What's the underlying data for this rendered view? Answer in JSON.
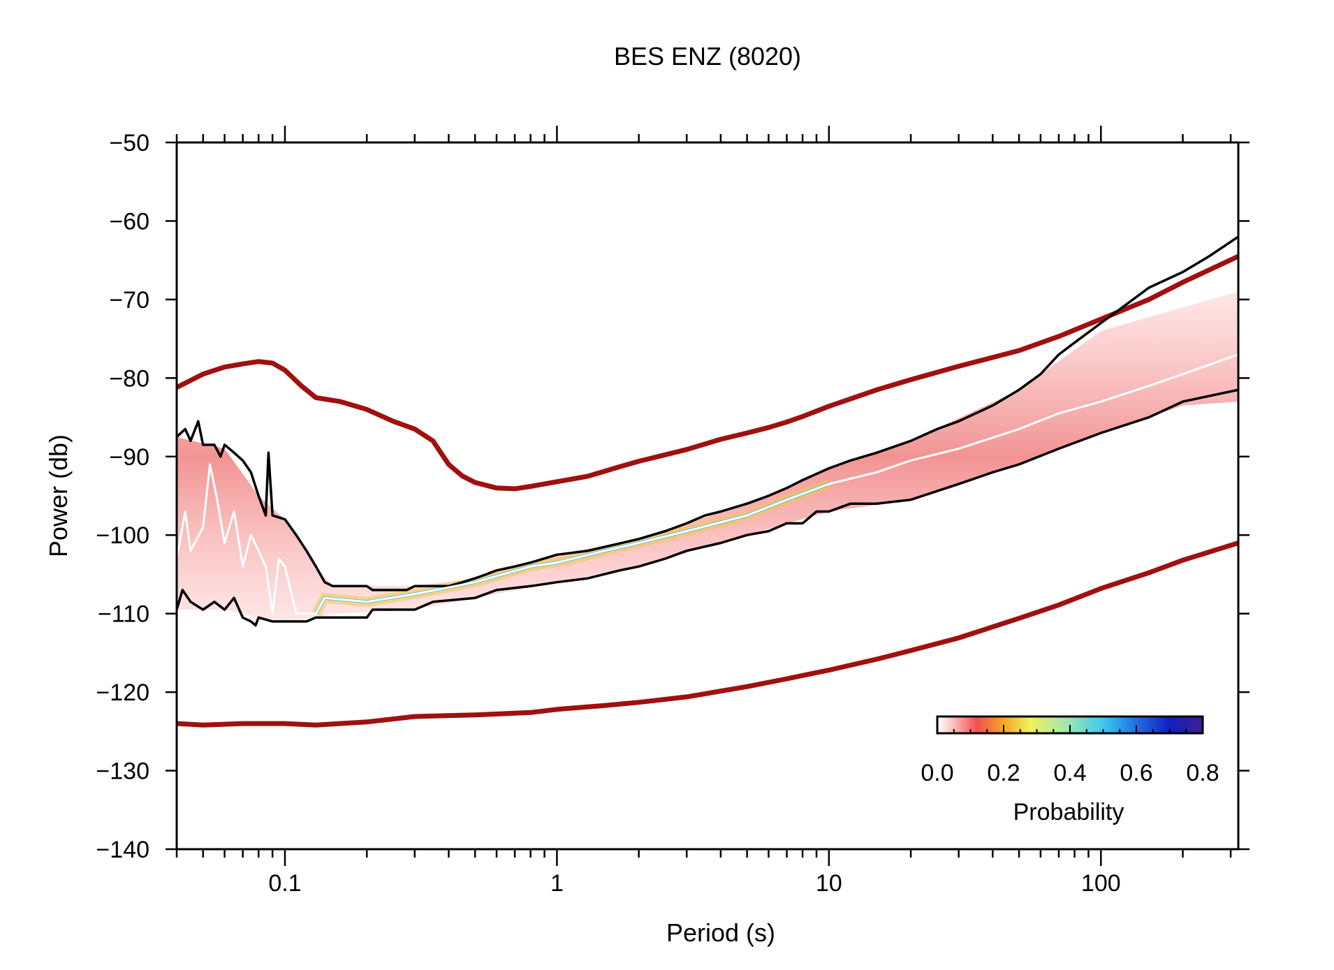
{
  "chart_data": {
    "type": "line",
    "title": "BES ENZ (8020)",
    "xlabel": "Period (s)",
    "ylabel": "Power (db)",
    "x_scale": "log",
    "xlim": [
      0.04,
      320
    ],
    "ylim": [
      -140,
      -50
    ],
    "x_ticks": [
      {
        "value": 0.1,
        "label": "0.1"
      },
      {
        "value": 1,
        "label": "1"
      },
      {
        "value": 10,
        "label": "10"
      },
      {
        "value": 100,
        "label": "100"
      }
    ],
    "y_ticks": [
      {
        "value": -50,
        "label": "−50"
      },
      {
        "value": -60,
        "label": "−60"
      },
      {
        "value": -70,
        "label": "−70"
      },
      {
        "value": -80,
        "label": "−80"
      },
      {
        "value": -90,
        "label": "−90"
      },
      {
        "value": -100,
        "label": "−100"
      },
      {
        "value": -110,
        "label": "−110"
      },
      {
        "value": -120,
        "label": "−120"
      },
      {
        "value": -130,
        "label": "−130"
      },
      {
        "value": -140,
        "label": "−140"
      }
    ],
    "grid": false,
    "colorbar": {
      "label": "Probability",
      "range": [
        0,
        0.8
      ],
      "ticks": [
        {
          "value": 0.0,
          "label": "0.0"
        },
        {
          "value": 0.2,
          "label": "0.2"
        },
        {
          "value": 0.4,
          "label": "0.4"
        },
        {
          "value": 0.6,
          "label": "0.6"
        },
        {
          "value": 0.8,
          "label": "0.8"
        }
      ],
      "stops": [
        {
          "value": 0.0,
          "color": "#ffffff"
        },
        {
          "value": 0.03,
          "color": "#ffd9d9"
        },
        {
          "value": 0.12,
          "color": "#f05050"
        },
        {
          "value": 0.2,
          "color": "#f5a623"
        },
        {
          "value": 0.28,
          "color": "#f0f060"
        },
        {
          "value": 0.38,
          "color": "#a8e8a8"
        },
        {
          "value": 0.5,
          "color": "#40c8f0"
        },
        {
          "value": 0.6,
          "color": "#2070e0"
        },
        {
          "value": 0.7,
          "color": "#1020c0"
        },
        {
          "value": 0.8,
          "color": "#402090"
        }
      ]
    },
    "series": [
      {
        "color": "#a01010",
        "points": [
          [
            0.04,
            -81.2
          ],
          [
            0.05,
            -79.5
          ],
          [
            0.06,
            -78.6
          ],
          [
            0.07,
            -78.2
          ],
          [
            0.08,
            -77.9
          ],
          [
            0.09,
            -78.1
          ],
          [
            0.1,
            -79
          ],
          [
            0.115,
            -81
          ],
          [
            0.13,
            -82.5
          ],
          [
            0.16,
            -83
          ],
          [
            0.2,
            -84
          ],
          [
            0.25,
            -85.5
          ],
          [
            0.3,
            -86.5
          ],
          [
            0.35,
            -88
          ],
          [
            0.4,
            -91
          ],
          [
            0.45,
            -92.5
          ],
          [
            0.5,
            -93.3
          ],
          [
            0.6,
            -94
          ],
          [
            0.7,
            -94.1
          ],
          [
            0.8,
            -93.8
          ],
          [
            1,
            -93.2
          ],
          [
            1.3,
            -92.5
          ],
          [
            1.7,
            -91.3
          ],
          [
            2,
            -90.6
          ],
          [
            3,
            -89.1
          ],
          [
            4,
            -87.8
          ],
          [
            5,
            -87
          ],
          [
            6,
            -86.3
          ],
          [
            7,
            -85.6
          ],
          [
            8,
            -84.9
          ],
          [
            10,
            -83.6
          ],
          [
            15,
            -81.5
          ],
          [
            20,
            -80.2
          ],
          [
            30,
            -78.5
          ],
          [
            50,
            -76.5
          ],
          [
            70,
            -74.7
          ],
          [
            100,
            -72.5
          ],
          [
            150,
            -70
          ],
          [
            200,
            -67.8
          ],
          [
            320,
            -64.5
          ]
        ]
      },
      {
        "color": "#a01010",
        "points": [
          [
            0.04,
            -124
          ],
          [
            0.05,
            -124.2
          ],
          [
            0.07,
            -124
          ],
          [
            0.1,
            -124
          ],
          [
            0.13,
            -124.2
          ],
          [
            0.2,
            -123.8
          ],
          [
            0.3,
            -123.1
          ],
          [
            0.5,
            -122.9
          ],
          [
            0.8,
            -122.6
          ],
          [
            1,
            -122.2
          ],
          [
            1.5,
            -121.7
          ],
          [
            2,
            -121.3
          ],
          [
            3,
            -120.6
          ],
          [
            5,
            -119.3
          ],
          [
            7,
            -118.3
          ],
          [
            10,
            -117.2
          ],
          [
            15,
            -115.8
          ],
          [
            20,
            -114.7
          ],
          [
            30,
            -113.1
          ],
          [
            50,
            -110.6
          ],
          [
            70,
            -108.9
          ],
          [
            100,
            -106.8
          ],
          [
            150,
            -104.8
          ],
          [
            200,
            -103.2
          ],
          [
            320,
            -101
          ]
        ]
      },
      {
        "color": "#000000",
        "points": [
          [
            0.04,
            -87.5
          ],
          [
            0.043,
            -86.5
          ],
          [
            0.045,
            -88
          ],
          [
            0.048,
            -85.5
          ],
          [
            0.05,
            -88.5
          ],
          [
            0.055,
            -88.5
          ],
          [
            0.058,
            -90
          ],
          [
            0.06,
            -88.5
          ],
          [
            0.065,
            -89.5
          ],
          [
            0.07,
            -90.5
          ],
          [
            0.075,
            -92
          ],
          [
            0.08,
            -95
          ],
          [
            0.085,
            -97.5
          ],
          [
            0.087,
            -89.5
          ],
          [
            0.09,
            -97.5
          ],
          [
            0.1,
            -98
          ],
          [
            0.11,
            -100
          ],
          [
            0.12,
            -102
          ],
          [
            0.13,
            -104
          ],
          [
            0.14,
            -106
          ],
          [
            0.15,
            -106.5
          ],
          [
            0.2,
            -106.5
          ],
          [
            0.21,
            -107
          ],
          [
            0.28,
            -107
          ],
          [
            0.3,
            -106.5
          ],
          [
            0.4,
            -106.5
          ],
          [
            0.45,
            -106
          ],
          [
            0.5,
            -105.5
          ],
          [
            0.55,
            -105
          ],
          [
            0.6,
            -104.5
          ],
          [
            0.7,
            -104
          ],
          [
            0.8,
            -103.5
          ],
          [
            1,
            -102.5
          ],
          [
            1.3,
            -102
          ],
          [
            1.5,
            -101.5
          ],
          [
            2,
            -100.5
          ],
          [
            2.5,
            -99.5
          ],
          [
            3,
            -98.5
          ],
          [
            3.5,
            -97.5
          ],
          [
            4,
            -97
          ],
          [
            5,
            -96
          ],
          [
            6,
            -95
          ],
          [
            7,
            -94
          ],
          [
            8,
            -93
          ],
          [
            10,
            -91.5
          ],
          [
            12,
            -90.5
          ],
          [
            15,
            -89.5
          ],
          [
            20,
            -88
          ],
          [
            25,
            -86.5
          ],
          [
            30,
            -85.5
          ],
          [
            40,
            -83.5
          ],
          [
            50,
            -81.5
          ],
          [
            60,
            -79.5
          ],
          [
            70,
            -77
          ],
          [
            80,
            -75.5
          ],
          [
            100,
            -73
          ],
          [
            120,
            -71
          ],
          [
            150,
            -68.5
          ],
          [
            200,
            -66.5
          ],
          [
            250,
            -64.5
          ],
          [
            320,
            -62
          ]
        ]
      },
      {
        "color": "#000000",
        "points": [
          [
            0.04,
            -109.5
          ],
          [
            0.042,
            -107
          ],
          [
            0.045,
            -108.5
          ],
          [
            0.05,
            -109.5
          ],
          [
            0.055,
            -108.5
          ],
          [
            0.06,
            -109.5
          ],
          [
            0.065,
            -108
          ],
          [
            0.07,
            -110.5
          ],
          [
            0.075,
            -111
          ],
          [
            0.078,
            -111.5
          ],
          [
            0.08,
            -110.5
          ],
          [
            0.09,
            -111
          ],
          [
            0.1,
            -111
          ],
          [
            0.12,
            -111
          ],
          [
            0.13,
            -110.5
          ],
          [
            0.2,
            -110.5
          ],
          [
            0.21,
            -109.5
          ],
          [
            0.3,
            -109.5
          ],
          [
            0.35,
            -108.5
          ],
          [
            0.5,
            -108
          ],
          [
            0.6,
            -107
          ],
          [
            0.8,
            -106.5
          ],
          [
            1,
            -106
          ],
          [
            1.3,
            -105.5
          ],
          [
            1.7,
            -104.5
          ],
          [
            2,
            -104
          ],
          [
            2.5,
            -103
          ],
          [
            3,
            -102
          ],
          [
            4,
            -101
          ],
          [
            5,
            -100
          ],
          [
            6,
            -99.5
          ],
          [
            7,
            -98.5
          ],
          [
            8,
            -98.5
          ],
          [
            9,
            -97
          ],
          [
            10,
            -97
          ],
          [
            12,
            -96
          ],
          [
            15,
            -96
          ],
          [
            20,
            -95.5
          ],
          [
            30,
            -93.5
          ],
          [
            40,
            -92
          ],
          [
            50,
            -91
          ],
          [
            70,
            -89
          ],
          [
            100,
            -87
          ],
          [
            150,
            -85
          ],
          [
            200,
            -83
          ],
          [
            320,
            -81.5
          ]
        ]
      },
      {
        "color": "#ffffff",
        "points": [
          [
            0.04,
            -103
          ],
          [
            0.043,
            -97
          ],
          [
            0.045,
            -102
          ],
          [
            0.05,
            -99
          ],
          [
            0.053,
            -91
          ],
          [
            0.056,
            -95
          ],
          [
            0.06,
            -101
          ],
          [
            0.065,
            -97
          ],
          [
            0.07,
            -104
          ],
          [
            0.075,
            -100
          ],
          [
            0.08,
            -102
          ],
          [
            0.085,
            -104
          ],
          [
            0.09,
            -110
          ],
          [
            0.095,
            -103
          ],
          [
            0.1,
            -104
          ],
          [
            0.11,
            -110
          ],
          [
            0.13,
            -110
          ],
          [
            0.14,
            -108
          ],
          [
            0.2,
            -108.5
          ],
          [
            0.3,
            -107.5
          ],
          [
            0.5,
            -106
          ],
          [
            0.8,
            -104
          ],
          [
            1,
            -103.5
          ],
          [
            1.5,
            -102
          ],
          [
            2,
            -101
          ],
          [
            3,
            -99.5
          ],
          [
            5,
            -97.5
          ],
          [
            7,
            -95.5
          ],
          [
            10,
            -93.5
          ],
          [
            15,
            -92
          ],
          [
            20,
            -90.5
          ],
          [
            30,
            -89
          ],
          [
            50,
            -86.5
          ],
          [
            70,
            -84.5
          ],
          [
            100,
            -83
          ],
          [
            150,
            -81
          ],
          [
            200,
            -79.5
          ],
          [
            320,
            -77
          ]
        ]
      }
    ],
    "density_band": {
      "points": [
        {
          "x": 0.04,
          "lo": -109.5,
          "hi": -87.5,
          "peak": 0.04
        },
        {
          "x": 0.06,
          "lo": -109.5,
          "hi": -89
        },
        {
          "x": 0.08,
          "lo": -110.5,
          "hi": -95
        },
        {
          "x": 0.1,
          "lo": -111,
          "hi": -98
        },
        {
          "x": 0.13,
          "lo": -110.5,
          "hi": -104
        },
        {
          "x": 0.15,
          "lo": -110,
          "hi": -106.5
        },
        {
          "x": 0.3,
          "lo": -109.5,
          "hi": -106.5
        },
        {
          "x": 0.5,
          "lo": -108,
          "hi": -105.5
        },
        {
          "x": 1,
          "lo": -106,
          "hi": -102.5
        },
        {
          "x": 2,
          "lo": -104,
          "hi": -100.5
        },
        {
          "x": 5,
          "lo": -100,
          "hi": -96
        },
        {
          "x": 10,
          "lo": -97,
          "hi": -91.5
        },
        {
          "x": 20,
          "lo": -95.5,
          "hi": -88
        },
        {
          "x": 50,
          "lo": -91,
          "hi": -81.5
        },
        {
          "x": 100,
          "lo": -87,
          "hi": -74
        },
        {
          "x": 200,
          "lo": -83.5,
          "hi": -71
        },
        {
          "x": 320,
          "lo": -83,
          "hi": -69
        }
      ]
    }
  }
}
